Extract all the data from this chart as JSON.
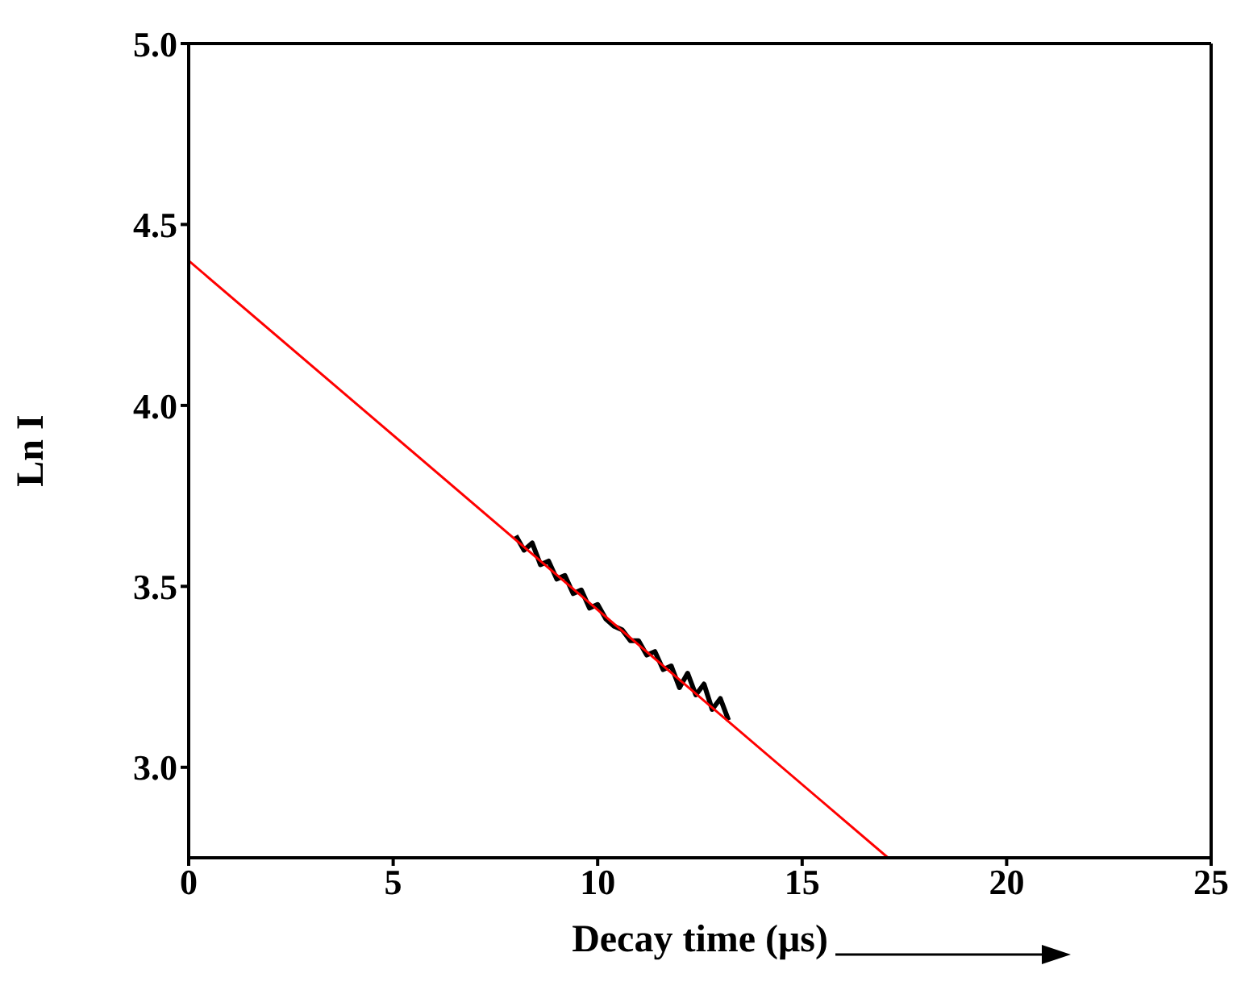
{
  "chart_data": {
    "type": "line",
    "xlabel": "Decay time  (μs)",
    "ylabel": "Ln I",
    "xlim": [
      0,
      25
    ],
    "ylim": [
      2.75,
      5.0
    ],
    "xticks": [
      0,
      5,
      10,
      15,
      20,
      25
    ],
    "yticks": [
      {
        "value": 3,
        "label": "3.0"
      },
      {
        "value": 3.5,
        "label": "3.5"
      },
      {
        "value": 4,
        "label": "4.0"
      },
      {
        "value": 4.5,
        "label": "4.5"
      },
      {
        "value": 5,
        "label": "5.0"
      }
    ],
    "marker": "none",
    "line_style": "solid",
    "series": [
      {
        "color": "#000000",
        "x": [
          8.0,
          8.2,
          8.4,
          8.6,
          8.8,
          9.0,
          9.2,
          9.4,
          9.6,
          9.8,
          10.0,
          10.2,
          10.4,
          10.6,
          10.8,
          11.0,
          11.2,
          11.4,
          11.6,
          11.8,
          12.0,
          12.2,
          12.4,
          12.6,
          12.8,
          13.0,
          13.2
        ],
        "values": [
          3.64,
          3.6,
          3.62,
          3.56,
          3.57,
          3.52,
          3.53,
          3.48,
          3.49,
          3.44,
          3.45,
          3.41,
          3.39,
          3.38,
          3.35,
          3.35,
          3.31,
          3.32,
          3.27,
          3.28,
          3.22,
          3.26,
          3.2,
          3.23,
          3.16,
          3.19,
          3.13
        ]
      },
      {
        "color": "#ff0000",
        "x": [
          0,
          17.1
        ],
        "values": [
          4.4,
          2.75
        ]
      }
    ]
  }
}
